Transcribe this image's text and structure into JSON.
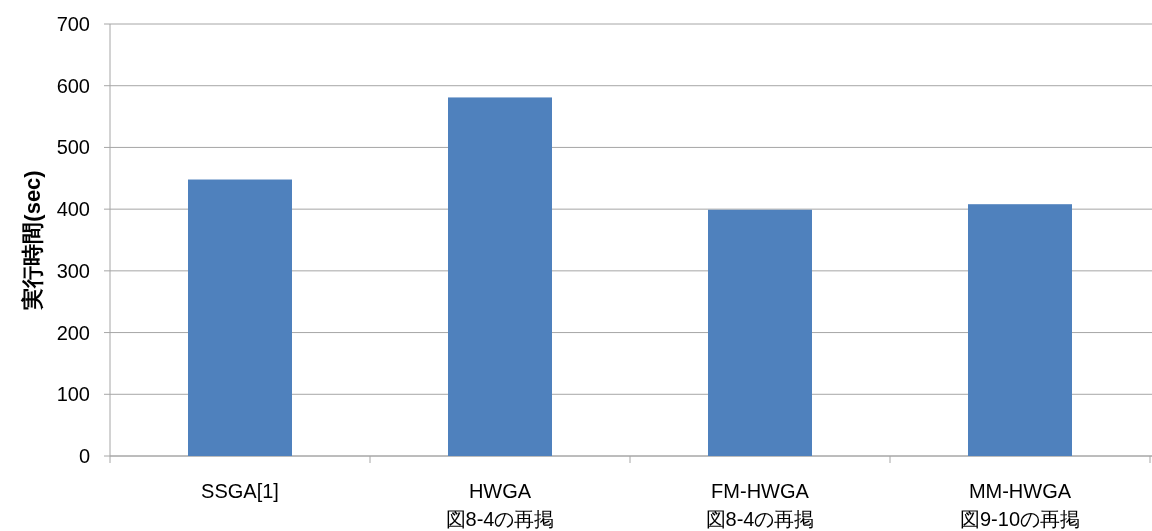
{
  "chart_data": {
    "type": "bar",
    "ylabel": "実行時間(sec)",
    "categories": [
      "SSGA[1]",
      "HWGA\n図8-4の再掲",
      "FM-HWGA\n図8-4の再掲",
      "MM-HWGA\n図9-10の再掲"
    ],
    "values": [
      448,
      581,
      399,
      408
    ],
    "color": "#4f81bd",
    "ylim": [
      0,
      700
    ],
    "yticks": [
      0,
      100,
      200,
      300,
      400,
      500,
      600,
      700
    ],
    "grid": "y"
  }
}
